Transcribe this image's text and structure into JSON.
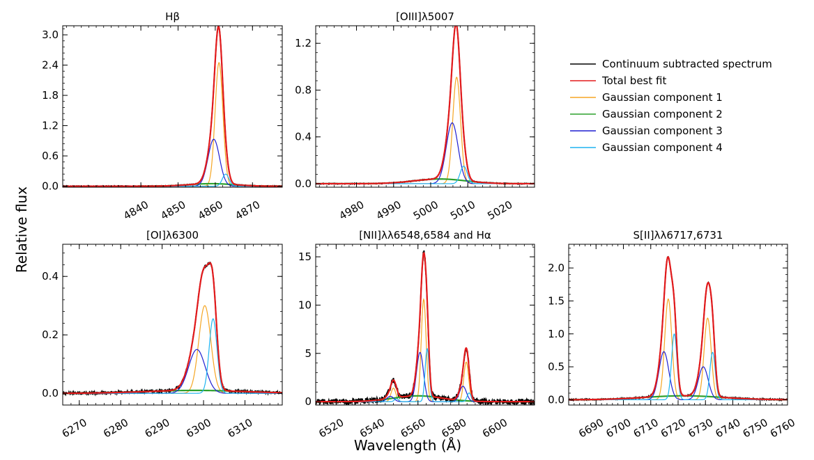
{
  "figure": {
    "ylabel": "Relative flux",
    "xlabel": "Wavelength (Å)"
  },
  "legend": [
    {
      "label": "Continuum subtracted spectrum",
      "color": "#000000"
    },
    {
      "label": "Total best fit",
      "color": "#e31a1c"
    },
    {
      "label": "Gaussian component 1",
      "color": "#f5a623"
    },
    {
      "label": "Gaussian component 2",
      "color": "#2ca02c"
    },
    {
      "label": "Gaussian component 3",
      "color": "#1f1fd1"
    },
    {
      "label": "Gaussian component 4",
      "color": "#1fb4f0"
    }
  ],
  "chart_data": [
    {
      "type": "line",
      "title": "Hβ",
      "xlim": [
        4819,
        4878
      ],
      "ylim": [
        -0.02,
        3.18
      ],
      "xticks": [
        4840,
        4850,
        4860,
        4870
      ],
      "yticks": [
        0.0,
        0.6,
        1.2,
        1.8,
        2.4,
        3.0
      ],
      "ytick_format": 1,
      "continuum_offset": 0.0,
      "noise": 0.004,
      "components": [
        {
          "id": 1,
          "lines": [
            {
              "center": 4861.0,
              "amp": 2.45,
              "sigma": 1.05
            }
          ]
        },
        {
          "id": 2,
          "lines": [
            {
              "center": 4859.0,
              "amp": 0.05,
              "sigma": 6.0
            }
          ]
        },
        {
          "id": 3,
          "lines": [
            {
              "center": 4859.6,
              "amp": 0.93,
              "sigma": 1.55
            }
          ]
        },
        {
          "id": 4,
          "lines": [
            {
              "center": 4862.8,
              "amp": 0.24,
              "sigma": 0.9
            }
          ]
        }
      ]
    },
    {
      "type": "line",
      "title": "[OIII]λ5007",
      "xlim": [
        4969,
        5028
      ],
      "ylim": [
        -0.03,
        1.35
      ],
      "xticks": [
        4980,
        4990,
        5000,
        5010,
        5020
      ],
      "yticks": [
        0.0,
        0.4,
        0.8,
        1.2
      ],
      "ytick_format": 1,
      "continuum_offset": 0.0,
      "noise": 0.004,
      "components": [
        {
          "id": 1,
          "lines": [
            {
              "center": 5007.0,
              "amp": 0.91,
              "sigma": 1.05
            }
          ]
        },
        {
          "id": 2,
          "lines": [
            {
              "center": 5002.5,
              "amp": 0.04,
              "sigma": 7.0
            }
          ]
        },
        {
          "id": 3,
          "lines": [
            {
              "center": 5005.8,
              "amp": 0.52,
              "sigma": 1.6
            }
          ]
        },
        {
          "id": 4,
          "lines": [
            {
              "center": 5008.9,
              "amp": 0.15,
              "sigma": 0.95
            }
          ]
        }
      ]
    },
    {
      "type": "line",
      "title": "[OI]λ6300",
      "xlim": [
        6266,
        6319
      ],
      "ylim": [
        -0.04,
        0.51
      ],
      "xticks": [
        6270,
        6280,
        6290,
        6300,
        6310
      ],
      "yticks": [
        0.0,
        0.2,
        0.4
      ],
      "ytick_format": 1,
      "continuum_offset": 0.0,
      "noise": 0.012,
      "components": [
        {
          "id": 1,
          "lines": [
            {
              "center": 6300.3,
              "amp": 0.3,
              "sigma": 1.45
            }
          ]
        },
        {
          "id": 2,
          "lines": [
            {
              "center": 6298.0,
              "amp": 0.01,
              "sigma": 12.0
            }
          ]
        },
        {
          "id": 3,
          "lines": [
            {
              "center": 6298.4,
              "amp": 0.15,
              "sigma": 2.0
            }
          ]
        },
        {
          "id": 4,
          "lines": [
            {
              "center": 6302.3,
              "amp": 0.255,
              "sigma": 0.95
            }
          ]
        }
      ]
    },
    {
      "type": "line",
      "title": "[NII]λλ6548,6584 and Hα",
      "xlim": [
        6510,
        6617
      ],
      "ylim": [
        -0.35,
        16.3
      ],
      "xticks": [
        6520,
        6540,
        6560,
        6580,
        6600
      ],
      "yticks": [
        0,
        5,
        10,
        15
      ],
      "ytick_format": 0,
      "continuum_offset": 0.0,
      "noise": 0.03,
      "components": [
        {
          "id": 1,
          "lines": [
            {
              "center": 6562.8,
              "amp": 10.6,
              "sigma": 1.2
            },
            {
              "center": 6548.0,
              "amp": 1.4,
              "sigma": 1.2
            },
            {
              "center": 6583.6,
              "amp": 4.1,
              "sigma": 1.2
            }
          ]
        },
        {
          "id": 2,
          "lines": [
            {
              "center": 6560.0,
              "amp": 0.6,
              "sigma": 12.0
            }
          ]
        },
        {
          "id": 3,
          "lines": [
            {
              "center": 6561.0,
              "amp": 5.1,
              "sigma": 1.7
            },
            {
              "center": 6546.5,
              "amp": 0.55,
              "sigma": 1.7
            },
            {
              "center": 6582.0,
              "amp": 1.6,
              "sigma": 1.7
            }
          ]
        },
        {
          "id": 4,
          "lines": [
            {
              "center": 6564.5,
              "amp": 5.5,
              "sigma": 1.0
            },
            {
              "center": 6549.5,
              "amp": 0.3,
              "sigma": 1.0
            },
            {
              "center": 6585.0,
              "amp": 0.9,
              "sigma": 1.0
            }
          ]
        }
      ]
    },
    {
      "type": "line",
      "title": "S[II]λλ6717,6731",
      "xlim": [
        6680,
        6760
      ],
      "ylim": [
        -0.08,
        2.36
      ],
      "xticks": [
        6690,
        6700,
        6710,
        6720,
        6730,
        6740,
        6750,
        6760
      ],
      "yticks": [
        0.0,
        0.5,
        1.0,
        1.5,
        2.0
      ],
      "ytick_format": 1,
      "continuum_offset": 0.0,
      "noise": 0.006,
      "components": [
        {
          "id": 1,
          "lines": [
            {
              "center": 6716.4,
              "amp": 1.53,
              "sigma": 1.3
            },
            {
              "center": 6730.8,
              "amp": 1.24,
              "sigma": 1.3
            }
          ]
        },
        {
          "id": 2,
          "lines": [
            {
              "center": 6722.0,
              "amp": 0.06,
              "sigma": 14.0
            }
          ]
        },
        {
          "id": 3,
          "lines": [
            {
              "center": 6714.8,
              "amp": 0.73,
              "sigma": 1.8
            },
            {
              "center": 6729.2,
              "amp": 0.5,
              "sigma": 1.8
            }
          ]
        },
        {
          "id": 4,
          "lines": [
            {
              "center": 6718.6,
              "amp": 1.0,
              "sigma": 1.0
            },
            {
              "center": 6732.6,
              "amp": 0.72,
              "sigma": 1.0
            }
          ]
        }
      ]
    }
  ]
}
